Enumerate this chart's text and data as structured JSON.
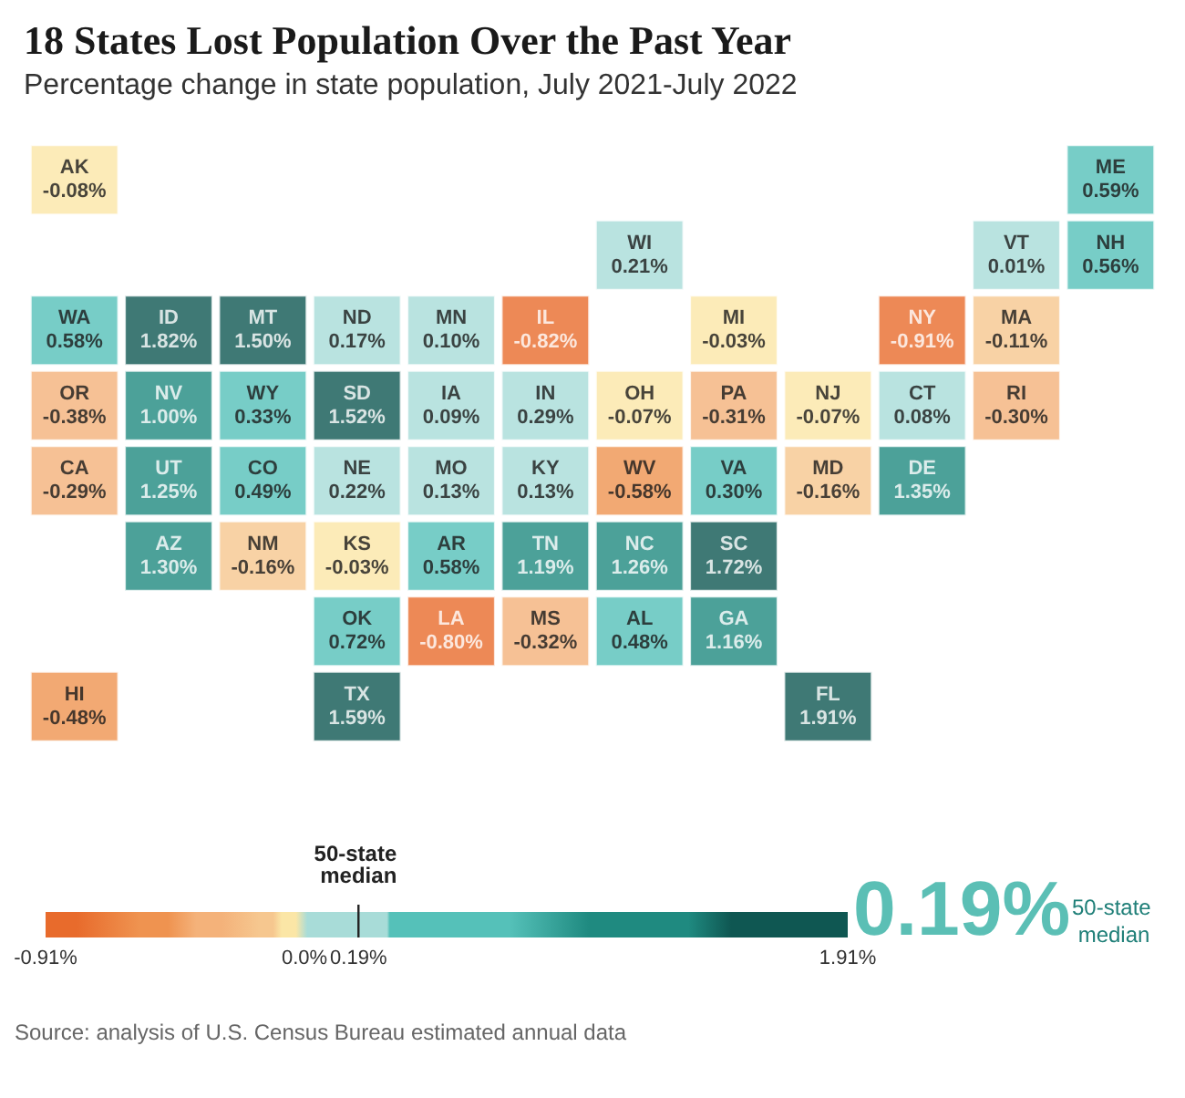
{
  "chart_data": {
    "type": "other",
    "title": "18 States Lost Population Over the Past Year",
    "subtitle": "Percentage change in state population, July 2021-July 2022",
    "categories": [
      "AK",
      "ME",
      "WI",
      "VT",
      "NH",
      "WA",
      "ID",
      "MT",
      "ND",
      "MN",
      "IL",
      "MI",
      "NY",
      "MA",
      "OR",
      "NV",
      "WY",
      "SD",
      "IA",
      "IN",
      "OH",
      "PA",
      "NJ",
      "CT",
      "RI",
      "CA",
      "UT",
      "CO",
      "NE",
      "MO",
      "KY",
      "WV",
      "VA",
      "MD",
      "DE",
      "AZ",
      "NM",
      "KS",
      "AR",
      "TN",
      "NC",
      "SC",
      "OK",
      "LA",
      "MS",
      "AL",
      "GA",
      "HI",
      "TX",
      "FL"
    ],
    "values": [
      -0.08,
      0.59,
      0.21,
      0.01,
      0.56,
      0.58,
      1.82,
      1.5,
      0.17,
      0.1,
      -0.82,
      -0.03,
      -0.91,
      -0.11,
      -0.38,
      1.0,
      0.33,
      1.52,
      0.09,
      0.29,
      -0.07,
      -0.31,
      -0.07,
      0.08,
      -0.3,
      -0.29,
      1.25,
      0.49,
      0.22,
      0.13,
      0.13,
      -0.58,
      0.3,
      -0.16,
      1.35,
      1.3,
      -0.16,
      -0.03,
      0.58,
      1.19,
      1.26,
      1.72,
      0.72,
      -0.8,
      -0.32,
      0.48,
      1.16,
      -0.48,
      1.59,
      1.91
    ],
    "value_labels": [
      "-0.08%",
      "0.59%",
      "0.21%",
      "0.01%",
      "0.56%",
      "0.58%",
      "1.82%",
      "1.50%",
      "0.17%",
      "0.10%",
      "-0.82%",
      "-0.03%",
      "-0.91%",
      "-0.11%",
      "-0.38%",
      "1.00%",
      "0.33%",
      "1.52%",
      "0.09%",
      "0.29%",
      "-0.07%",
      "-0.31%",
      "-0.07%",
      "0.08%",
      "-0.30%",
      "-0.29%",
      "1.25%",
      "0.49%",
      "0.22%",
      "0.13%",
      "0.13%",
      "-0.58%",
      "0.30%",
      "-0.16%",
      "1.35%",
      "1.30%",
      "-0.16%",
      "-0.03%",
      "0.58%",
      "1.19%",
      "1.26%",
      "1.72%",
      "0.72%",
      "-0.80%",
      "-0.32%",
      "0.48%",
      "1.16%",
      "-0.48%",
      "1.59%",
      "1.91%"
    ],
    "colors": [
      "#fbe6a6",
      "#55c1b9",
      "#a8dcd8",
      "#a8dcd8",
      "#55c1b9",
      "#55c1b9",
      "#0f5752",
      "#0f5752",
      "#a8dcd8",
      "#a8dcd8",
      "#e86b2c",
      "#fbe6a6",
      "#e86b2c",
      "#f6c78f",
      "#f4b27a",
      "#1f8a80",
      "#55c1b9",
      "#0f5752",
      "#a8dcd8",
      "#a8dcd8",
      "#fbe6a6",
      "#f4b27a",
      "#fbe6a6",
      "#a8dcd8",
      "#f4b27a",
      "#f4b27a",
      "#1f8a80",
      "#55c1b9",
      "#a8dcd8",
      "#a8dcd8",
      "#a8dcd8",
      "#ef9350",
      "#55c1b9",
      "#f6c78f",
      "#1f8a80",
      "#1f8a80",
      "#f6c78f",
      "#fbe6a6",
      "#55c1b9",
      "#1f8a80",
      "#1f8a80",
      "#0f5752",
      "#55c1b9",
      "#e86b2c",
      "#f4b27a",
      "#55c1b9",
      "#1f8a80",
      "#ef9350",
      "#0f5752",
      "#0f5752"
    ],
    "annotations": [
      "50-state median",
      "-0.91%",
      "0.0%",
      "0.19%",
      "1.91%",
      "0.19%",
      "50-state median",
      "Source: analysis of U.S. Census Bureau estimated annual data"
    ]
  }
}
